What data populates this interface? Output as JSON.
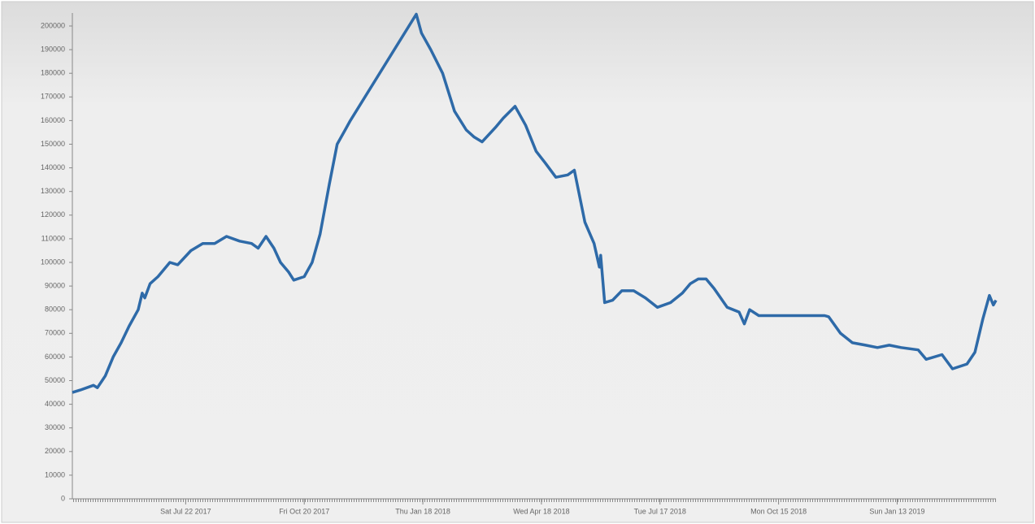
{
  "chart_data": {
    "type": "line",
    "x": [
      "2017-04-27",
      "2017-05-03",
      "2017-05-13",
      "2017-05-16",
      "2017-05-22",
      "2017-05-28",
      "2017-06-03",
      "2017-06-09",
      "2017-06-16",
      "2017-06-19",
      "2017-06-21",
      "2017-06-25",
      "2017-07-01",
      "2017-07-10",
      "2017-07-16",
      "2017-07-26",
      "2017-08-04",
      "2017-08-13",
      "2017-08-22",
      "2017-09-01",
      "2017-09-10",
      "2017-09-15",
      "2017-09-21",
      "2017-09-27",
      "2017-10-02",
      "2017-10-08",
      "2017-10-12",
      "2017-10-20",
      "2017-10-26",
      "2017-11-01",
      "2017-11-08",
      "2017-11-14",
      "2017-11-20",
      "2017-11-24",
      "2018-01-13",
      "2018-01-17",
      "2018-01-24",
      "2018-02-02",
      "2018-02-11",
      "2018-02-20",
      "2018-02-26",
      "2018-03-04",
      "2018-03-14",
      "2018-03-20",
      "2018-03-29",
      "2018-04-06",
      "2018-04-14",
      "2018-04-21",
      "2018-04-29",
      "2018-05-08",
      "2018-05-13",
      "2018-05-21",
      "2018-05-28",
      "2018-06-01",
      "2018-06-02",
      "2018-06-05",
      "2018-06-11",
      "2018-06-18",
      "2018-06-27",
      "2018-07-06",
      "2018-07-15",
      "2018-07-25",
      "2018-08-03",
      "2018-08-09",
      "2018-08-15",
      "2018-08-21",
      "2018-08-27",
      "2018-09-06",
      "2018-09-15",
      "2018-09-19",
      "2018-09-23",
      "2018-09-30",
      "2018-11-19",
      "2018-11-22",
      "2018-12-01",
      "2018-12-10",
      "2018-12-20",
      "2018-12-29",
      "2019-01-07",
      "2019-01-16",
      "2019-01-29",
      "2019-02-04",
      "2019-02-16",
      "2019-02-24",
      "2019-03-07",
      "2019-03-13",
      "2019-03-19",
      "2019-03-24",
      "2019-03-27",
      "2019-03-29"
    ],
    "series": [
      {
        "color": "#2e6aa8",
        "values": [
          45000,
          46000,
          48000,
          47000,
          52000,
          60000,
          66000,
          73000,
          80000,
          87000,
          85000,
          91000,
          94000,
          100000,
          99000,
          105000,
          108000,
          108000,
          111000,
          109000,
          108000,
          106000,
          111000,
          106000,
          100000,
          96000,
          92500,
          94000,
          100000,
          112000,
          133000,
          150000,
          156000,
          160000,
          205000,
          197000,
          190000,
          180000,
          164000,
          156000,
          153000,
          151000,
          157000,
          161000,
          166000,
          158000,
          147000,
          142000,
          136000,
          137000,
          139000,
          117000,
          108000,
          98000,
          103000,
          83000,
          84000,
          88000,
          88000,
          85000,
          81000,
          83000,
          87000,
          91000,
          93000,
          93000,
          89000,
          81000,
          79000,
          74000,
          80000,
          77500,
          77500,
          77000,
          70000,
          66000,
          65000,
          64000,
          65000,
          64000,
          63000,
          59000,
          61000,
          55000,
          57000,
          62000,
          76000,
          86000,
          82000,
          84000
        ]
      }
    ],
    "xlim": [
      "2017-04-27",
      "2019-03-29"
    ],
    "xticks": [
      {
        "value": "2017-07-22",
        "label": "Sat Jul 22 2017"
      },
      {
        "value": "2017-10-20",
        "label": "Fri Oct 20 2017"
      },
      {
        "value": "2018-01-18",
        "label": "Thu Jan 18 2018"
      },
      {
        "value": "2018-04-18",
        "label": "Wed Apr 18 2018"
      },
      {
        "value": "2018-07-17",
        "label": "Tue Jul 17 2018"
      },
      {
        "value": "2018-10-15",
        "label": "Mon Oct 15 2018"
      },
      {
        "value": "2019-01-13",
        "label": "Sun Jan 13 2019"
      }
    ],
    "ylim": [
      0,
      205500
    ],
    "yticks": [
      0,
      10000,
      20000,
      30000,
      40000,
      50000,
      60000,
      70000,
      80000,
      90000,
      100000,
      110000,
      120000,
      130000,
      140000,
      150000,
      160000,
      170000,
      180000,
      190000,
      200000
    ]
  }
}
